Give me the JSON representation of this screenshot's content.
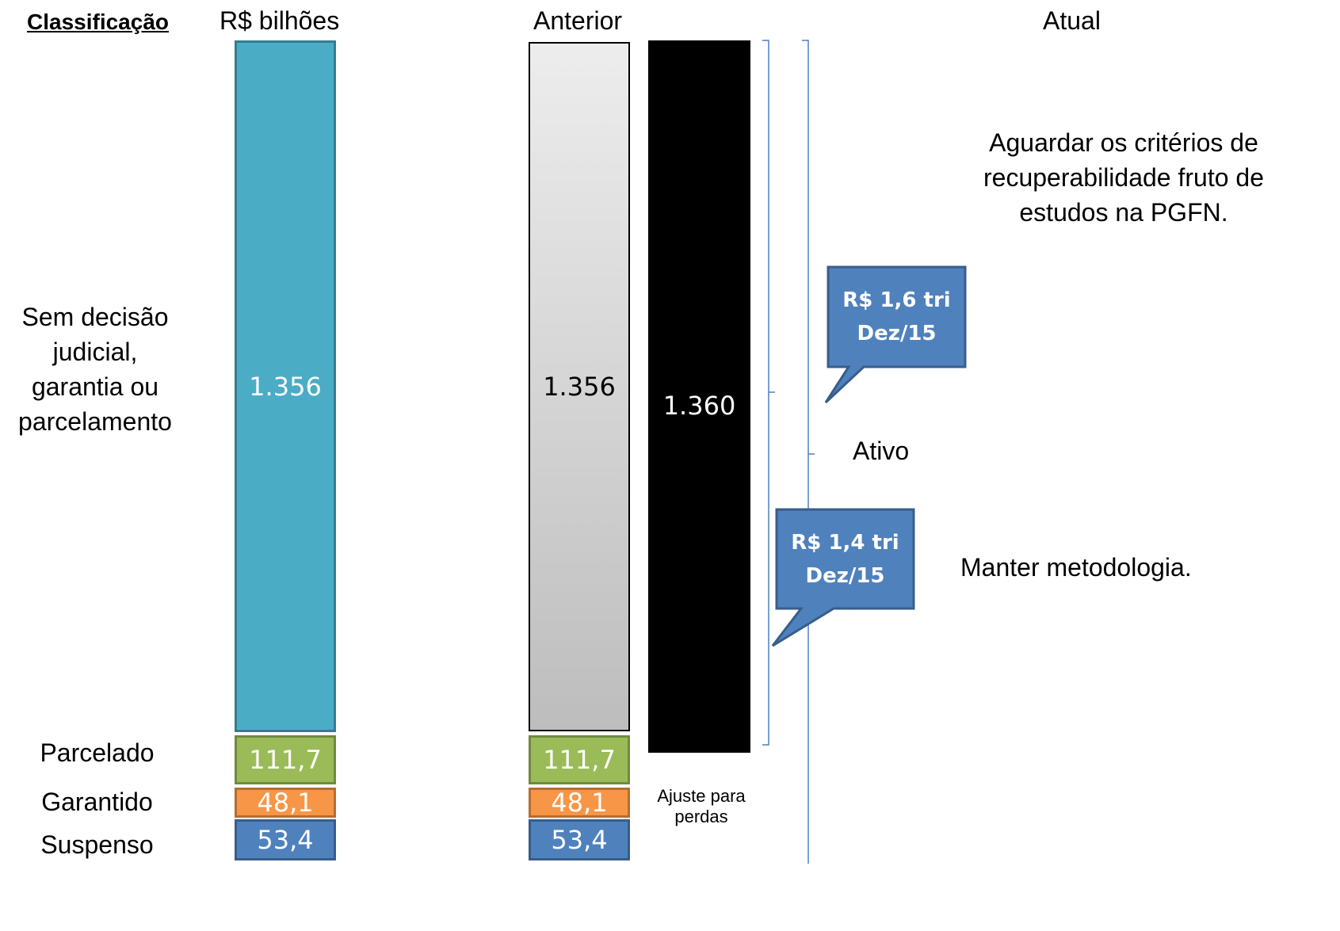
{
  "headers": {
    "classificacao": "Classificação",
    "unit": "R$ bilhões",
    "anterior": "Anterior",
    "atual": "Atual"
  },
  "row_labels": {
    "sem_decisao": [
      "Sem decisão",
      "judicial,",
      "garantia ou",
      "parcelamento"
    ],
    "parcelado": "Parcelado",
    "garantido": "Garantido",
    "suspenso": "Suspenso"
  },
  "classificacao_bar": {
    "sem_decisao": "1.356",
    "parcelado": "111,7",
    "garantido": "48,1",
    "suspenso": "53,4"
  },
  "anterior_bar": {
    "sem_decisao": "1.356",
    "parcelado": "111,7",
    "garantido": "48,1",
    "suspenso": "53,4"
  },
  "ajuste_bar": {
    "value": "1.360",
    "label": [
      "Ajuste para",
      "perdas"
    ]
  },
  "bracket": {
    "ativo": "Ativo"
  },
  "callouts": {
    "upper": [
      "R$ 1,6 tri",
      "Dez/15"
    ],
    "lower": [
      "R$ 1,4 tri",
      "Dez/15"
    ]
  },
  "notes": {
    "upper": [
      "Aguardar os critérios de",
      "recuperabilidade fruto de",
      "estudos na PGFN."
    ],
    "lower": "Manter metodologia."
  },
  "colors": {
    "teal": "#4BACC6",
    "green": "#9BBB59",
    "orange": "#F79646",
    "blue": "#4F81BD",
    "callout": "#4F81BD",
    "bracket": "#4F81BD"
  }
}
